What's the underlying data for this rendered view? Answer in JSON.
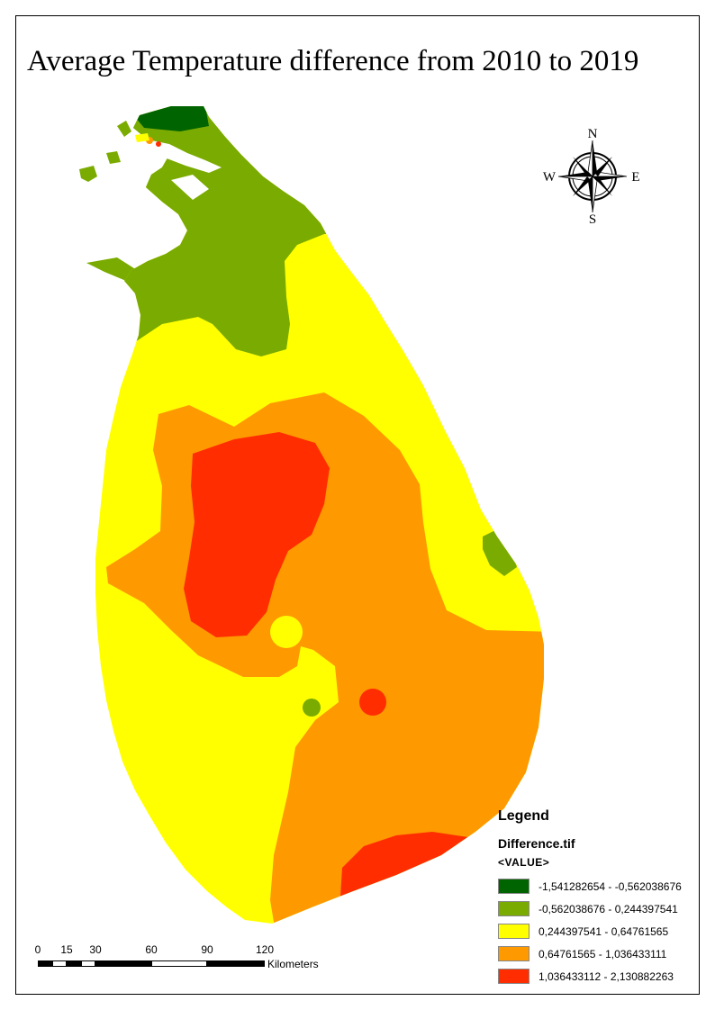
{
  "title": "Average Temperature difference from 2010 to 2019",
  "compass": {
    "north": "N",
    "south": "S",
    "east": "E",
    "west": "W"
  },
  "legend": {
    "title": "Legend",
    "layer": "Difference.tif",
    "field": "<VALUE>",
    "classes": [
      {
        "label": "-1,541282654 - -0,562038676",
        "color": "#006400"
      },
      {
        "label": "-0,562038676 - 0,244397541",
        "color": "#7aab00"
      },
      {
        "label": "0,244397541 - 0,64761565",
        "color": "#ffff00"
      },
      {
        "label": "0,64761565 - 1,036433111",
        "color": "#ff9900"
      },
      {
        "label": "1,036433112 - 2,130882263",
        "color": "#ff2d00"
      }
    ]
  },
  "scale_bar": {
    "ticks": [
      "0",
      "15",
      "30",
      "60",
      "90",
      "120"
    ],
    "units": "Kilometers"
  }
}
